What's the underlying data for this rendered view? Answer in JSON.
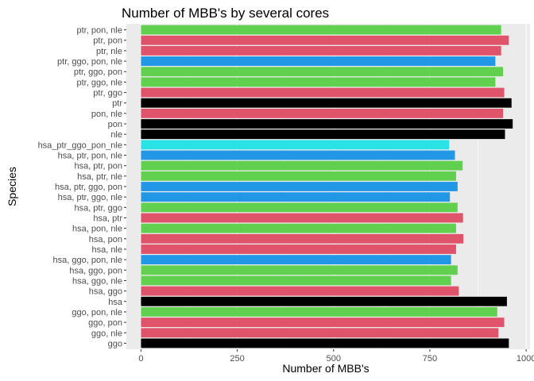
{
  "chart_data": {
    "type": "bar",
    "orientation": "horizontal",
    "title": "Number of MBB's by several cores",
    "xlabel": "Number of MBB's",
    "ylabel": "Species",
    "xlim": [
      -38,
      1010
    ],
    "xticks": [
      0,
      250,
      500,
      750,
      1000
    ],
    "grid": true,
    "legend": "none",
    "colors": {
      "panel": "#EBEBEB",
      "grid_major": "#FFFFFF",
      "black": "#000000",
      "red": "#DF536B",
      "green": "#61D04F",
      "blue": "#2297E6",
      "cyan": "#28E2E5"
    },
    "categories": [
      "ptr, pon, nle",
      "ptr, pon",
      "ptr, nle",
      "ptr, ggo, pon, nle",
      "ptr, ggo, pon",
      "ptr, ggo, nle",
      "ptr, ggo",
      "ptr",
      "pon, nle",
      "pon",
      "nle",
      "hsa_ptr_ggo_pon_nle",
      "hsa, ptr, pon, nle",
      "hsa, ptr, pon",
      "hsa, ptr, nle",
      "hsa, ptr, ggo, pon",
      "hsa, ptr, ggo, nle",
      "hsa, ptr, ggo",
      "hsa, ptr",
      "hsa, pon, nle",
      "hsa, pon",
      "hsa, nle",
      "hsa, ggo, pon, nle",
      "hsa, ggo, pon",
      "hsa, ggo, nle",
      "hsa, ggo",
      "hsa",
      "ggo, pon, nle",
      "ggo, pon",
      "ggo, nle",
      "ggo"
    ],
    "values": [
      935,
      955,
      935,
      920,
      940,
      920,
      943,
      962,
      940,
      965,
      945,
      800,
      815,
      835,
      818,
      822,
      802,
      822,
      836,
      818,
      837,
      818,
      805,
      822,
      805,
      825,
      950,
      925,
      943,
      928,
      955
    ],
    "bar_colors": [
      "green",
      "red",
      "red",
      "blue",
      "green",
      "green",
      "red",
      "black",
      "red",
      "black",
      "black",
      "cyan",
      "blue",
      "green",
      "green",
      "blue",
      "blue",
      "green",
      "red",
      "green",
      "red",
      "red",
      "blue",
      "green",
      "green",
      "red",
      "black",
      "green",
      "red",
      "red",
      "black"
    ]
  }
}
